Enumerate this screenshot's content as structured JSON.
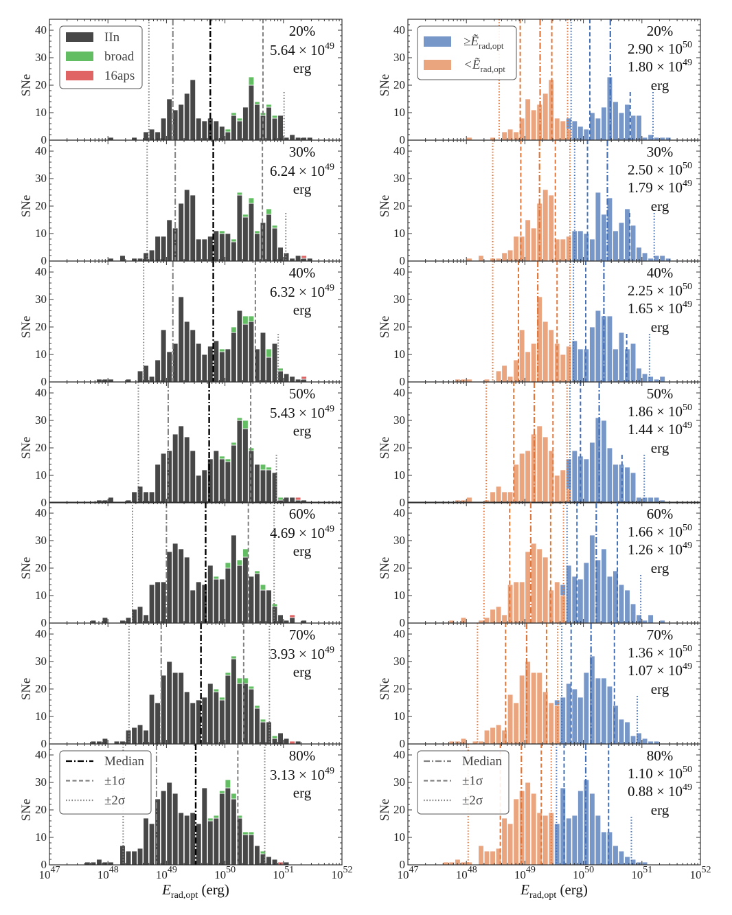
{
  "chart_data": {
    "type": "bar",
    "subtype": "stacked log-binned histograms, 7 rows x 2 columns",
    "xlabel": {
      "symbol": "E",
      "sub": "rad,opt",
      "unit": " (erg)"
    },
    "ylabel": "SNe",
    "x_scale": "log10",
    "xlim_log10": [
      47,
      52
    ],
    "ylim": [
      0,
      44
    ],
    "x_tick_labels": [
      {
        "base": "10",
        "exp": "47"
      },
      {
        "base": "10",
        "exp": "48"
      },
      {
        "base": "10",
        "exp": "49"
      },
      {
        "base": "10",
        "exp": "50"
      },
      {
        "base": "10",
        "exp": "51"
      },
      {
        "base": "10",
        "exp": "52"
      }
    ],
    "y_ticks": [
      0,
      10,
      20,
      30,
      40
    ],
    "bin_width_dex": 0.1,
    "bin_start_log10": 47.6,
    "colors": {
      "IIn": "#474747",
      "broad": "#63bd63",
      "16aps": "#e06464",
      "above": "#7797c8",
      "below": "#eaa47e",
      "above_line": "#4470b8",
      "below_line": "#e0763a",
      "median_line": "#000000",
      "sigma_line": "#808080"
    },
    "legend_left": {
      "placement": "top-left",
      "entries": [
        "IIn",
        "broad",
        "16aps"
      ]
    },
    "legend_right": {
      "placement": "top-left",
      "entries": [
        {
          "prefix": "≥Ẽ",
          "sub": "rad,opt"
        },
        {
          "prefix": "<Ẽ",
          "sub": "rad,opt"
        }
      ]
    },
    "legend_lines": {
      "placement": "bottom-left",
      "entries": [
        "Median",
        "±1σ",
        "±2σ"
      ]
    },
    "unit_label": "erg",
    "panels": [
      {
        "label": "20%",
        "median": {
          "mant": "5.64 × 10",
          "exp": "49"
        },
        "blue_median": {
          "mant": "2.90 × 10",
          "exp": "50"
        },
        "orange_median": {
          "mant": "1.80 × 10",
          "exp": "49"
        },
        "lines_log10": {
          "median": 49.75,
          "s1": [
            49.11,
            50.65
          ],
          "s2": [
            48.7,
            51.01
          ]
        },
        "blue_lines_log10": {
          "median": 50.46,
          "s1": [
            50.11,
            50.8
          ],
          "s2": [
            49.79,
            51.19
          ]
        },
        "orange_lines_log10": {
          "median": 49.26,
          "s1": [
            48.92,
            49.46
          ],
          "s2": [
            48.56,
            49.73
          ]
        },
        "IIn": [
          0,
          0,
          0,
          0,
          1,
          0,
          0,
          0,
          1,
          0,
          3,
          4,
          3,
          8,
          15,
          11,
          13,
          17,
          22,
          8,
          7,
          8,
          7,
          5,
          3,
          9,
          7,
          12,
          20,
          13,
          9,
          12,
          8,
          9,
          1,
          2,
          1,
          1,
          1,
          0
        ],
        "broad": [
          [
            50.0,
            1
          ],
          [
            50.1,
            1
          ],
          [
            50.2,
            1
          ],
          [
            50.4,
            3
          ],
          [
            50.5,
            1
          ],
          [
            50.6,
            1
          ],
          [
            50.7,
            1
          ],
          [
            50.8,
            1
          ]
        ],
        "16aps": []
      },
      {
        "label": "30%",
        "median": {
          "mant": "6.24 × 10",
          "exp": "49"
        },
        "blue_median": {
          "mant": "2.50 × 10",
          "exp": "50"
        },
        "orange_median": {
          "mant": "1.79 × 10",
          "exp": "49"
        },
        "lines_log10": {
          "median": 49.8,
          "s1": [
            49.15,
            50.64
          ],
          "s2": [
            48.67,
            51.04
          ]
        },
        "blue_lines_log10": {
          "median": 50.41,
          "s1": [
            50.07,
            50.79
          ],
          "s2": [
            49.85,
            51.21
          ]
        },
        "orange_lines_log10": {
          "median": 49.25,
          "s1": [
            48.93,
            49.52
          ],
          "s2": [
            48.45,
            49.77
          ]
        },
        "IIn": [
          0,
          0,
          0,
          0,
          1,
          0,
          2,
          0,
          1,
          1,
          3,
          4,
          9,
          9,
          15,
          12,
          21,
          26,
          24,
          8,
          8,
          9,
          11,
          10,
          10,
          7,
          24,
          16,
          21,
          10,
          14,
          17,
          12,
          5,
          3,
          1,
          2,
          1,
          1,
          0
        ],
        "broad": [
          [
            49.9,
            1
          ],
          [
            50.1,
            1
          ],
          [
            50.2,
            1
          ],
          [
            50.3,
            1
          ],
          [
            50.4,
            2
          ],
          [
            50.5,
            1
          ],
          [
            50.7,
            2
          ],
          [
            50.8,
            1
          ]
        ],
        "16aps": [
          [
            51.3,
            1
          ]
        ]
      },
      {
        "label": "40%",
        "median": {
          "mant": "6.32 × 10",
          "exp": "49"
        },
        "blue_median": {
          "mant": "2.25 × 10",
          "exp": "50"
        },
        "orange_median": {
          "mant": "1.65 × 10",
          "exp": "49"
        },
        "lines_log10": {
          "median": 49.8,
          "s1": [
            49.11,
            50.52
          ],
          "s2": [
            48.61,
            50.91
          ]
        },
        "blue_lines_log10": {
          "median": 50.35,
          "s1": [
            50.04,
            50.74
          ],
          "s2": [
            49.83,
            51.13
          ]
        },
        "orange_lines_log10": {
          "median": 49.22,
          "s1": [
            48.89,
            49.55
          ],
          "s2": [
            48.45,
            49.77
          ]
        },
        "IIn": [
          0,
          0,
          1,
          1,
          1,
          0,
          0,
          1,
          0,
          4,
          6,
          2,
          8,
          19,
          11,
          14,
          31,
          22,
          19,
          14,
          10,
          13,
          15,
          11,
          12,
          18,
          26,
          21,
          22,
          12,
          18,
          9,
          14,
          4,
          3,
          2,
          1,
          1,
          0,
          0
        ],
        "broad": [
          [
            49.9,
            1
          ],
          [
            50.1,
            2
          ],
          [
            50.3,
            3
          ],
          [
            50.4,
            2
          ],
          [
            50.7,
            3
          ],
          [
            50.9,
            1
          ]
        ],
        "16aps": [
          [
            51.3,
            1
          ]
        ]
      },
      {
        "label": "50%",
        "median": {
          "mant": "5.43 × 10",
          "exp": "49"
        },
        "blue_median": {
          "mant": "1.86 × 10",
          "exp": "50"
        },
        "orange_median": {
          "mant": "1.44 × 10",
          "exp": "49"
        },
        "lines_log10": {
          "median": 49.73,
          "s1": [
            49.03,
            50.44
          ],
          "s2": [
            48.52,
            50.88
          ]
        },
        "blue_lines_log10": {
          "median": 50.27,
          "s1": [
            49.95,
            50.66
          ],
          "s2": [
            49.77,
            51.04
          ]
        },
        "orange_lines_log10": {
          "median": 49.16,
          "s1": [
            48.81,
            49.48
          ],
          "s2": [
            48.34,
            49.72
          ]
        },
        "IIn": [
          0,
          0,
          1,
          1,
          2,
          0,
          0,
          1,
          4,
          6,
          4,
          4,
          14,
          18,
          19,
          25,
          28,
          24,
          19,
          10,
          12,
          16,
          19,
          16,
          15,
          21,
          30,
          27,
          19,
          14,
          12,
          12,
          11,
          1,
          2,
          2,
          1,
          1,
          0,
          0
        ],
        "broad": [
          [
            49.9,
            1
          ],
          [
            50.0,
            1
          ],
          [
            50.1,
            1
          ],
          [
            50.2,
            1
          ],
          [
            50.3,
            3
          ],
          [
            50.4,
            1
          ],
          [
            50.6,
            2
          ],
          [
            50.7,
            1
          ],
          [
            50.9,
            1
          ]
        ],
        "16aps": [
          [
            51.2,
            1
          ]
        ]
      },
      {
        "label": "60%",
        "median": {
          "mant": "4.69 × 10",
          "exp": "49"
        },
        "blue_median": {
          "mant": "1.66 × 10",
          "exp": "50"
        },
        "orange_median": {
          "mant": "1.26 × 10",
          "exp": "49"
        },
        "lines_log10": {
          "median": 49.67,
          "s1": [
            49.0,
            50.4
          ],
          "s2": [
            48.42,
            50.84
          ]
        },
        "blue_lines_log10": {
          "median": 50.22,
          "s1": [
            49.89,
            50.58
          ],
          "s2": [
            49.72,
            50.98
          ]
        },
        "orange_lines_log10": {
          "median": 49.1,
          "s1": [
            48.74,
            49.44
          ],
          "s2": [
            48.3,
            49.66
          ]
        },
        "IIn": [
          0,
          1,
          0,
          2,
          0,
          0,
          1,
          2,
          5,
          6,
          3,
          14,
          15,
          15,
          26,
          29,
          27,
          24,
          12,
          15,
          14,
          21,
          16,
          16,
          20,
          32,
          21,
          24,
          17,
          18,
          12,
          12,
          6,
          3,
          1,
          2,
          0,
          1,
          0,
          0
        ],
        "broad": [
          [
            49.8,
            1
          ],
          [
            50.0,
            2
          ],
          [
            50.2,
            2
          ],
          [
            50.3,
            3
          ],
          [
            50.5,
            1
          ],
          [
            50.6,
            2
          ],
          [
            50.8,
            1
          ]
        ],
        "16aps": [
          [
            51.1,
            1
          ]
        ]
      },
      {
        "label": "70%",
        "median": {
          "mant": "3.93 × 10",
          "exp": "49"
        },
        "blue_median": {
          "mant": "1.36 × 10",
          "exp": "50"
        },
        "orange_median": {
          "mant": "1.07 × 10",
          "exp": "49"
        },
        "lines_log10": {
          "median": 49.59,
          "s1": [
            48.91,
            50.32
          ],
          "s2": [
            48.36,
            50.76
          ]
        },
        "blue_lines_log10": {
          "median": 50.13,
          "s1": [
            49.79,
            50.53
          ],
          "s2": [
            49.63,
            50.92
          ]
        },
        "orange_lines_log10": {
          "median": 49.03,
          "s1": [
            48.67,
            49.37
          ],
          "s2": [
            48.19,
            49.56
          ]
        },
        "IIn": [
          0,
          1,
          1,
          2,
          0,
          1,
          1,
          5,
          6,
          7,
          5,
          18,
          15,
          25,
          30,
          26,
          26,
          19,
          15,
          16,
          17,
          22,
          19,
          16,
          25,
          31,
          22,
          22,
          20,
          13,
          8,
          8,
          2,
          4,
          2,
          0,
          1,
          0,
          0,
          0
        ],
        "broad": [
          [
            49.8,
            1
          ],
          [
            49.9,
            1
          ],
          [
            50.0,
            1
          ],
          [
            50.1,
            1
          ],
          [
            50.2,
            2
          ],
          [
            50.3,
            2
          ],
          [
            50.4,
            1
          ],
          [
            50.5,
            1
          ],
          [
            50.6,
            1
          ],
          [
            50.8,
            1
          ]
        ],
        "16aps": [
          [
            51.1,
            1
          ]
        ]
      },
      {
        "label": "80%",
        "median": {
          "mant": "3.13 × 10",
          "exp": "49"
        },
        "blue_median": {
          "mant": "1.10 × 10",
          "exp": "50"
        },
        "orange_median": {
          "mant": "0.88 × 10",
          "exp": "49"
        },
        "lines_log10": {
          "median": 49.5,
          "s1": [
            48.83,
            50.22
          ],
          "s2": [
            48.26,
            50.68
          ]
        },
        "blue_lines_log10": {
          "median": 50.04,
          "s1": [
            49.67,
            50.43
          ],
          "s2": [
            49.54,
            50.82
          ]
        },
        "orange_lines_log10": {
          "median": 48.94,
          "s1": [
            48.58,
            49.28
          ],
          "s2": [
            48.03,
            49.45
          ]
        },
        "IIn": [
          1,
          1,
          2,
          1,
          1,
          0,
          7,
          5,
          5,
          6,
          17,
          15,
          24,
          27,
          30,
          26,
          19,
          18,
          19,
          15,
          28,
          16,
          17,
          26,
          28,
          24,
          17,
          11,
          11,
          7,
          4,
          3,
          2,
          0,
          1,
          0,
          0,
          0,
          0,
          0
        ],
        "broad": [
          [
            49.7,
            1
          ],
          [
            49.8,
            1
          ],
          [
            49.9,
            1
          ],
          [
            50.0,
            3
          ],
          [
            50.1,
            2
          ],
          [
            50.2,
            1
          ],
          [
            50.3,
            1
          ],
          [
            50.4,
            1
          ],
          [
            50.6,
            1
          ]
        ],
        "16aps": [
          [
            50.9,
            1
          ]
        ]
      }
    ]
  }
}
